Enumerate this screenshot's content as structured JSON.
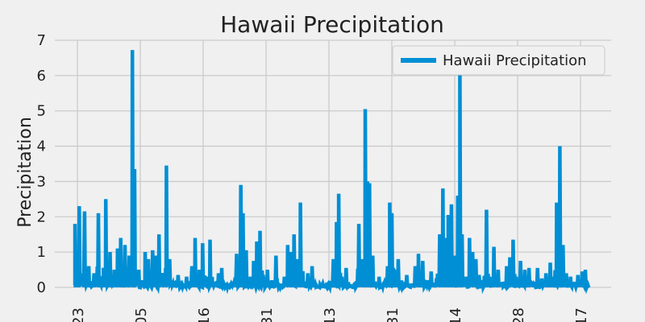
{
  "chart_data": {
    "type": "line",
    "title": "Hawaii Precipitation",
    "xlabel": "",
    "ylabel": "Precipitation",
    "ylim": [
      0,
      7
    ],
    "y_ticks": [
      0,
      1,
      2,
      3,
      4,
      5,
      6,
      7
    ],
    "grid": true,
    "legend_placement": "top-right",
    "x_tick_labels": [
      "23",
      "05",
      "16",
      "31",
      "13",
      "31",
      "14",
      "28",
      "17"
    ],
    "series": [
      {
        "name": "Hawaii Precipitation",
        "color": "#008fd5",
        "peaks": [
          {
            "x": 0.0,
            "y": 1.8
          },
          {
            "x": 0.4,
            "y": 2.3
          },
          {
            "x": 0.9,
            "y": 2.15
          },
          {
            "x": 1.3,
            "y": 0.6
          },
          {
            "x": 1.8,
            "y": 0.4
          },
          {
            "x": 2.2,
            "y": 2.1
          },
          {
            "x": 2.6,
            "y": 0.3
          },
          {
            "x": 2.9,
            "y": 2.5
          },
          {
            "x": 3.3,
            "y": 1.0
          },
          {
            "x": 3.7,
            "y": 0.5
          },
          {
            "x": 4.0,
            "y": 1.1
          },
          {
            "x": 4.3,
            "y": 1.4
          },
          {
            "x": 4.7,
            "y": 1.2
          },
          {
            "x": 5.1,
            "y": 0.9
          },
          {
            "x": 5.4,
            "y": 6.72
          },
          {
            "x": 5.6,
            "y": 3.35
          },
          {
            "x": 6.0,
            "y": 0.5
          },
          {
            "x": 6.3,
            "y": 0.2
          },
          {
            "x": 6.6,
            "y": 1.0
          },
          {
            "x": 6.9,
            "y": 0.8
          },
          {
            "x": 7.3,
            "y": 1.05
          },
          {
            "x": 7.6,
            "y": 0.9
          },
          {
            "x": 7.9,
            "y": 1.5
          },
          {
            "x": 8.3,
            "y": 0.3
          },
          {
            "x": 8.6,
            "y": 3.45
          },
          {
            "x": 8.9,
            "y": 0.8
          },
          {
            "x": 9.3,
            "y": 0.1
          },
          {
            "x": 9.7,
            "y": 0.35
          },
          {
            "x": 10.0,
            "y": 0.05
          },
          {
            "x": 10.5,
            "y": 0.3
          },
          {
            "x": 11.0,
            "y": 0.6
          },
          {
            "x": 11.3,
            "y": 1.4
          },
          {
            "x": 11.7,
            "y": 0.5
          },
          {
            "x": 12.0,
            "y": 1.25
          },
          {
            "x": 12.4,
            "y": 0.3
          },
          {
            "x": 12.7,
            "y": 1.35
          },
          {
            "x": 13.1,
            "y": 0.1
          },
          {
            "x": 13.5,
            "y": 0.4
          },
          {
            "x": 13.8,
            "y": 0.55
          },
          {
            "x": 14.2,
            "y": 0.05
          },
          {
            "x": 14.7,
            "y": 0.1
          },
          {
            "x": 15.2,
            "y": 0.95
          },
          {
            "x": 15.6,
            "y": 2.9
          },
          {
            "x": 15.8,
            "y": 2.1
          },
          {
            "x": 16.1,
            "y": 1.05
          },
          {
            "x": 16.5,
            "y": 0.3
          },
          {
            "x": 16.8,
            "y": 0.75
          },
          {
            "x": 17.1,
            "y": 1.3
          },
          {
            "x": 17.4,
            "y": 1.6
          },
          {
            "x": 17.8,
            "y": 0.3
          },
          {
            "x": 18.1,
            "y": 0.5
          },
          {
            "x": 18.5,
            "y": 0.2
          },
          {
            "x": 18.9,
            "y": 0.9
          },
          {
            "x": 19.3,
            "y": 0.1
          },
          {
            "x": 19.7,
            "y": 0.3
          },
          {
            "x": 20.0,
            "y": 1.2
          },
          {
            "x": 20.3,
            "y": 1.0
          },
          {
            "x": 20.6,
            "y": 1.5
          },
          {
            "x": 20.9,
            "y": 0.8
          },
          {
            "x": 21.2,
            "y": 2.4
          },
          {
            "x": 21.5,
            "y": 0.1
          },
          {
            "x": 21.9,
            "y": 0.4
          },
          {
            "x": 22.3,
            "y": 0.6
          },
          {
            "x": 22.7,
            "y": 0.05
          },
          {
            "x": 23.3,
            "y": 0.1
          },
          {
            "x": 23.8,
            "y": 0.1
          },
          {
            "x": 24.3,
            "y": 0.8
          },
          {
            "x": 24.6,
            "y": 1.85
          },
          {
            "x": 24.8,
            "y": 2.65
          },
          {
            "x": 25.1,
            "y": 0.3
          },
          {
            "x": 25.5,
            "y": 0.55
          },
          {
            "x": 25.9,
            "y": 0.05
          },
          {
            "x": 26.3,
            "y": 0.1
          },
          {
            "x": 26.7,
            "y": 1.8
          },
          {
            "x": 27.0,
            "y": 0.8
          },
          {
            "x": 27.3,
            "y": 5.05
          },
          {
            "x": 27.5,
            "y": 3.0
          },
          {
            "x": 27.7,
            "y": 2.95
          },
          {
            "x": 28.0,
            "y": 0.9
          },
          {
            "x": 28.3,
            "y": 0.05
          },
          {
            "x": 28.6,
            "y": 0.3
          },
          {
            "x": 29.0,
            "y": 0.1
          },
          {
            "x": 29.4,
            "y": 0.6
          },
          {
            "x": 29.6,
            "y": 2.4
          },
          {
            "x": 29.8,
            "y": 2.1
          },
          {
            "x": 30.1,
            "y": 0.5
          },
          {
            "x": 30.4,
            "y": 0.8
          },
          {
            "x": 30.8,
            "y": 0.05
          },
          {
            "x": 31.2,
            "y": 0.35
          },
          {
            "x": 31.6,
            "y": 0.1
          },
          {
            "x": 32.0,
            "y": 0.6
          },
          {
            "x": 32.3,
            "y": 0.95
          },
          {
            "x": 32.7,
            "y": 0.75
          },
          {
            "x": 33.1,
            "y": 0.2
          },
          {
            "x": 33.5,
            "y": 0.45
          },
          {
            "x": 33.9,
            "y": 0.1
          },
          {
            "x": 34.3,
            "y": 1.5
          },
          {
            "x": 34.6,
            "y": 2.8
          },
          {
            "x": 34.9,
            "y": 1.4
          },
          {
            "x": 35.1,
            "y": 2.05
          },
          {
            "x": 35.4,
            "y": 2.35
          },
          {
            "x": 35.7,
            "y": 0.9
          },
          {
            "x": 36.0,
            "y": 2.6
          },
          {
            "x": 36.2,
            "y": 6.25
          },
          {
            "x": 36.4,
            "y": 1.5
          },
          {
            "x": 36.8,
            "y": 0.3
          },
          {
            "x": 37.1,
            "y": 1.4
          },
          {
            "x": 37.4,
            "y": 1.0
          },
          {
            "x": 37.7,
            "y": 0.8
          },
          {
            "x": 38.0,
            "y": 0.35
          },
          {
            "x": 38.3,
            "y": 0.2
          },
          {
            "x": 38.7,
            "y": 2.2
          },
          {
            "x": 39.0,
            "y": 0.3
          },
          {
            "x": 39.4,
            "y": 1.15
          },
          {
            "x": 39.8,
            "y": 0.5
          },
          {
            "x": 40.2,
            "y": 0.15
          },
          {
            "x": 40.6,
            "y": 0.6
          },
          {
            "x": 40.9,
            "y": 0.85
          },
          {
            "x": 41.2,
            "y": 1.35
          },
          {
            "x": 41.5,
            "y": 0.3
          },
          {
            "x": 41.9,
            "y": 0.75
          },
          {
            "x": 42.3,
            "y": 0.5
          },
          {
            "x": 42.7,
            "y": 0.55
          },
          {
            "x": 43.1,
            "y": 0.1
          },
          {
            "x": 43.5,
            "y": 0.55
          },
          {
            "x": 43.9,
            "y": 0.25
          },
          {
            "x": 44.3,
            "y": 0.4
          },
          {
            "x": 44.7,
            "y": 0.7
          },
          {
            "x": 45.0,
            "y": 0.3
          },
          {
            "x": 45.3,
            "y": 2.4
          },
          {
            "x": 45.6,
            "y": 4.0
          },
          {
            "x": 45.9,
            "y": 1.2
          },
          {
            "x": 46.2,
            "y": 0.4
          },
          {
            "x": 46.6,
            "y": 0.3
          },
          {
            "x": 46.9,
            "y": 0.15
          },
          {
            "x": 47.3,
            "y": 0.35
          },
          {
            "x": 47.7,
            "y": 0.45
          },
          {
            "x": 48.0,
            "y": 0.5
          },
          {
            "x": 48.3,
            "y": 0.05
          }
        ]
      }
    ]
  }
}
